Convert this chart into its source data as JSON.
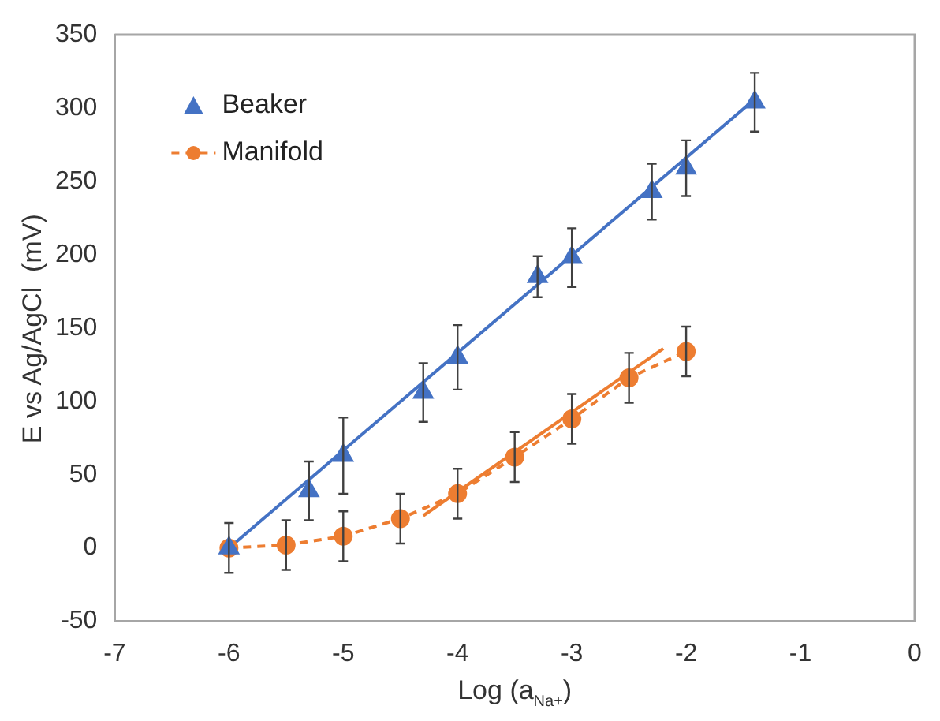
{
  "chart_data": {
    "type": "scatter",
    "xlabel": "Log (a$_{Na+}$)",
    "ylabel": "E vs Ag/AgCl  (mV)",
    "xlim": [
      -7,
      0
    ],
    "xticks": [
      -7,
      -6,
      -5,
      -4,
      -3,
      -2,
      -1,
      0
    ],
    "ylim": [
      -50,
      350
    ],
    "yticks": [
      -50,
      0,
      50,
      100,
      150,
      200,
      250,
      300,
      350
    ],
    "grid": false,
    "legend": "top left",
    "series": [
      {
        "name": "Beaker",
        "color": "#4472c4",
        "marker": "triangle",
        "x": [
          -6,
          -5.3,
          -5,
          -4.3,
          -4,
          -3.3,
          -3,
          -2.3,
          -2,
          -1.4
        ],
        "values": [
          0,
          39,
          63,
          106,
          130,
          185,
          198,
          243,
          259,
          304
        ],
        "errors": [
          null,
          20,
          26,
          20,
          22,
          14,
          20,
          19,
          19,
          20
        ]
      },
      {
        "name": "Manifold",
        "type": "line",
        "color": "#ed7d31",
        "marker": "circle",
        "line_style": "dashed",
        "x": [
          -6,
          -5.5,
          -5,
          -4.5,
          -4,
          -3.5,
          -3,
          -2.5,
          -2
        ],
        "values": [
          0,
          2,
          8,
          20,
          37,
          62,
          88,
          116,
          134
        ],
        "errors": [
          17,
          17,
          17,
          17,
          17,
          17,
          17,
          17,
          17
        ]
      },
      {
        "type": "line",
        "color": "#4472c4",
        "marker": "none",
        "line_style": "solid",
        "x": [
          -6,
          -1.4
        ],
        "values": [
          0,
          306
        ]
      },
      {
        "type": "line",
        "color": "#ed7d31",
        "marker": "none",
        "line_style": "solid",
        "x": [
          -4.3,
          -2.2
        ],
        "values": [
          22,
          136
        ]
      }
    ]
  }
}
